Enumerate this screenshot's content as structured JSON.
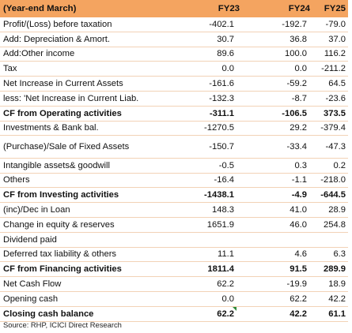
{
  "header": {
    "label": "(Year-end March)",
    "fy23": "FY23",
    "fy24": "FY24",
    "fy25": "FY25"
  },
  "rows": [
    {
      "label": "Profit/(Loss) before taxation",
      "fy23": "-402.1",
      "fy24": "-192.7",
      "fy25": "-79.0"
    },
    {
      "label": "Add: Depreciation & Amort.",
      "fy23": "30.7",
      "fy24": "36.8",
      "fy25": "37.0"
    },
    {
      "label": "Add:Other income",
      "fy23": "89.6",
      "fy24": "100.0",
      "fy25": "116.2"
    },
    {
      "label": "Tax",
      "fy23": "0.0",
      "fy24": "0.0",
      "fy25": "-211.2"
    },
    {
      "label": "Net Increase in Current Assets",
      "fy23": "-161.6",
      "fy24": "-59.2",
      "fy25": "64.5"
    },
    {
      "label": "less: 'Net Increase in Current Liab.",
      "fy23": "-132.3",
      "fy24": "-8.7",
      "fy25": "-23.6"
    },
    {
      "label": "CF from Operating activities",
      "fy23": "-311.1",
      "fy24": "-106.5",
      "fy25": "373.5"
    },
    {
      "label": "Investments & Bank bal.",
      "fy23": "-1270.5",
      "fy24": "29.2",
      "fy25": "-379.4"
    },
    {
      "label": "(Purchase)/Sale of Fixed Assets",
      "fy23": "-150.7",
      "fy24": "-33.4",
      "fy25": "-47.3"
    },
    {
      "label": "Intangible assets& goodwill",
      "fy23": "-0.5",
      "fy24": "0.3",
      "fy25": "0.2"
    },
    {
      "label": "Others",
      "fy23": "-16.4",
      "fy24": "-1.1",
      "fy25": "-218.0"
    },
    {
      "label": "CF from Investing activities",
      "fy23": "-1438.1",
      "fy24": "-4.9",
      "fy25": "-644.5"
    },
    {
      "label": "(inc)/Dec in Loan",
      "fy23": "148.3",
      "fy24": "41.0",
      "fy25": "28.9"
    },
    {
      "label": "Change in equity & reserves",
      "fy23": "1651.9",
      "fy24": "46.0",
      "fy25": "254.8"
    },
    {
      "label": "Dividend paid",
      "fy23": "",
      "fy24": "",
      "fy25": ""
    },
    {
      "label": "Deferred tax liability & others",
      "fy23": "11.1",
      "fy24": "4.6",
      "fy25": "6.3"
    },
    {
      "label": "CF from Financing activities",
      "fy23": "1811.4",
      "fy24": "91.5",
      "fy25": "289.9"
    },
    {
      "label": "Net Cash Flow",
      "fy23": "62.2",
      "fy24": "-19.9",
      "fy25": "18.9"
    },
    {
      "label": "Opening cash",
      "fy23": "0.0",
      "fy24": "62.2",
      "fy25": "42.2"
    },
    {
      "label": "Closing cash balance",
      "fy23": "62.2",
      "fy24": "42.2",
      "fy25": "61.1"
    }
  ],
  "source": "Source: RHP, ICICI Direct Research"
}
